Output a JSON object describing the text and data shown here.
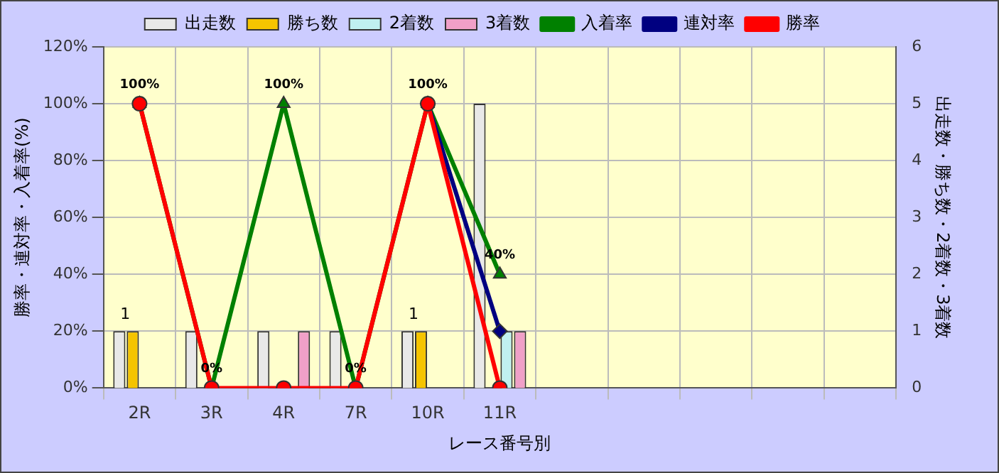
{
  "chart_data": {
    "type": "bar",
    "xlabel": "レース番号別",
    "ylabel": "勝率・連対率・入着率(%)",
    "y2label": "出走数・勝ち数・2着数・3着数",
    "categories": [
      "2R",
      "3R",
      "4R",
      "7R",
      "10R",
      "11R",
      null,
      null,
      null,
      null,
      null
    ],
    "series": [
      {
        "name": "出走数",
        "axis": "y2",
        "color": "#e8e8e8",
        "values": [
          1,
          1,
          1,
          1,
          1,
          5,
          null,
          null,
          null,
          null,
          null
        ]
      },
      {
        "name": "勝ち数",
        "axis": "y2",
        "color": "#f5c400",
        "values": [
          1,
          0,
          0,
          0,
          1,
          0,
          null,
          null,
          null,
          null,
          null
        ],
        "value_labels": [
          "1",
          null,
          null,
          null,
          "1",
          null,
          null,
          null,
          null,
          null,
          null
        ]
      },
      {
        "name": "2着数",
        "axis": "y2",
        "color": "#c0f0f0",
        "values": [
          0,
          0,
          0,
          0,
          0,
          1,
          null,
          null,
          null,
          null,
          null
        ]
      },
      {
        "name": "3着数",
        "axis": "y2",
        "color": "#f0a0c8",
        "values": [
          0,
          0,
          1,
          0,
          0,
          1,
          null,
          null,
          null,
          null,
          null
        ]
      },
      {
        "name": "入着率",
        "type": "line",
        "color": "#008000",
        "marker": "triangle",
        "values": [
          100,
          0,
          100,
          0,
          100,
          40,
          null,
          null,
          null,
          null,
          null
        ],
        "value_labels": [
          null,
          null,
          "100%",
          null,
          null,
          "40%",
          null,
          null,
          null,
          null,
          null
        ]
      },
      {
        "name": "連対率",
        "type": "line",
        "color": "#000080",
        "marker": "diamond",
        "values": [
          null,
          null,
          null,
          null,
          100,
          20,
          null,
          null,
          null,
          null,
          null
        ]
      },
      {
        "name": "勝率",
        "type": "line",
        "color": "#ff0000",
        "marker": "circle",
        "values": [
          100,
          0,
          0,
          0,
          100,
          0,
          null,
          null,
          null,
          null,
          null
        ],
        "value_labels": [
          "100%",
          "0%",
          null,
          "0%",
          "100%",
          null,
          null,
          null,
          null,
          null,
          null
        ]
      }
    ],
    "ylim": [
      0,
      120
    ],
    "yticks": [
      {
        "value": 0,
        "label": "0%"
      },
      {
        "value": 20,
        "label": "20%"
      },
      {
        "value": 40,
        "label": "40%"
      },
      {
        "value": 60,
        "label": "60%"
      },
      {
        "value": 80,
        "label": "80%"
      },
      {
        "value": 100,
        "label": "100%"
      },
      {
        "value": 120,
        "label": "120%"
      }
    ],
    "y2lim": [
      0,
      6
    ],
    "y2ticks": [
      0,
      1,
      2,
      3,
      4,
      5,
      6
    ],
    "grid": true,
    "legend": "top"
  }
}
